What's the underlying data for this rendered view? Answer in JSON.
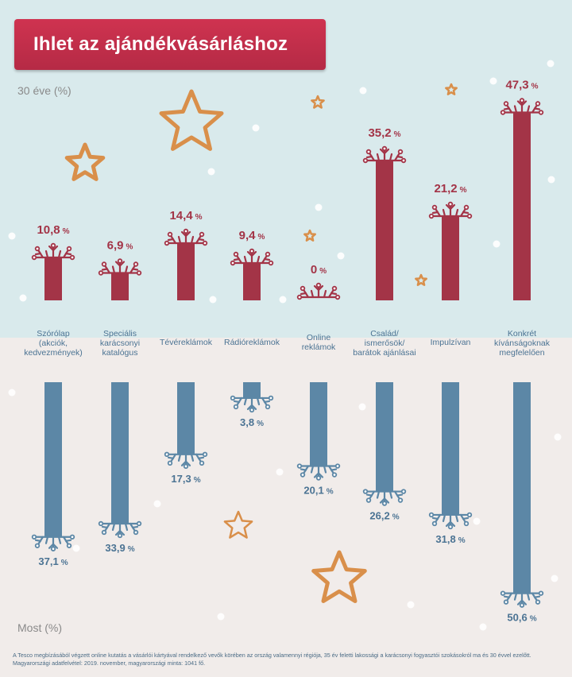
{
  "title": "Ihlet az ajándékvásárláshoz",
  "top_axis_caption": "30 éve (%)",
  "bottom_axis_caption": "Most (%)",
  "footnote": "A Tesco megbízásából végzett online kutatás a vásárlói kártyával rendelkező vevők körében az ország valamennyi régiója, 35 év feletti lakossági a karácsonyi fogyasztói szokásokról ma és 30 évvel ezelőtt. Magyarországi adatfelvétel: 2019. november, magyarországi minta: 1041 fő.",
  "colors": {
    "top_bar": "#a33447",
    "bottom_bar": "#5c87a6",
    "top_background": "#d9eaec",
    "bottom_background": "#f1ecea",
    "star": "#d98f4a"
  },
  "chart_data": {
    "type": "bar",
    "orientation": "mirrored vertical bars",
    "categories": [
      [
        "Szórólap",
        "(akciók,",
        "kedvezmények)"
      ],
      [
        "Speciális",
        "karácsonyi",
        "katalógus"
      ],
      [
        "Tévéreklámok"
      ],
      [
        "Rádióreklámok"
      ],
      [
        "Online",
        "reklámok"
      ],
      [
        "Család/",
        "ismerősök/",
        "barátok ajánlásai"
      ],
      [
        "Impulzívan"
      ],
      [
        "Konkrét",
        "kívánságoknak",
        "megfelelően"
      ]
    ],
    "series": [
      {
        "name": "30 éve (%)",
        "values": [
          10.8,
          6.9,
          14.4,
          9.4,
          0,
          35.2,
          21.2,
          47.3
        ],
        "labels": [
          "10,8",
          "6,9",
          "14,4",
          "9,4",
          "0",
          "35,2",
          "21,2",
          "47,3"
        ]
      },
      {
        "name": "Most (%)",
        "values": [
          37.1,
          33.9,
          17.3,
          3.8,
          20.1,
          26.2,
          31.8,
          50.6
        ],
        "labels": [
          "37,1",
          "33,9",
          "17,3",
          "3,8",
          "20,1",
          "26,2",
          "31,8",
          "50,6"
        ]
      }
    ],
    "unit_label": "%",
    "grid": false
  }
}
